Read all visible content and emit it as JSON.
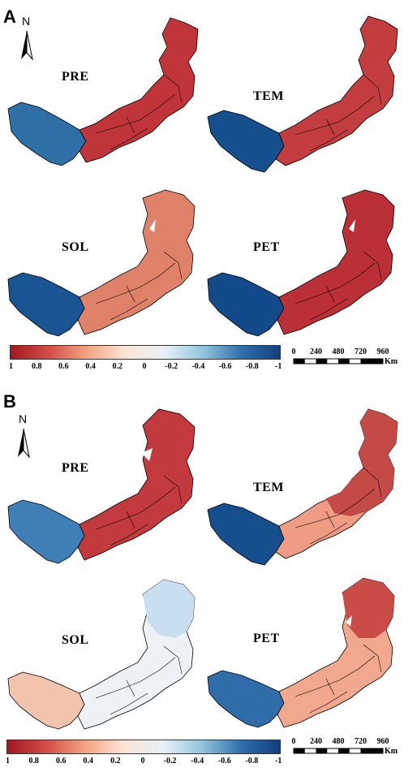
{
  "panels": [
    {
      "letter": "A",
      "maps": [
        {
          "label": "PRE",
          "west": "#2f6fa8",
          "east": "#c0353a",
          "mid": "#d24a4a"
        },
        {
          "label": "TEM",
          "west": "#154f8e",
          "east": "#c33d3e",
          "mid": "#d45a50"
        },
        {
          "label": "SOL",
          "west": "#1a5593",
          "east": "#e0826a",
          "mid": "#e8947a"
        },
        {
          "label": "PET",
          "west": "#134b8a",
          "east": "#bb2f36",
          "mid": "#c94446"
        }
      ]
    },
    {
      "letter": "B",
      "maps": [
        {
          "label": "PRE",
          "west": "#3e7fb8",
          "east": "#c23a3e",
          "mid": "#d3574f"
        },
        {
          "label": "TEM",
          "west": "#164f8d",
          "east": "#c44a45",
          "mid": "#ee9d84"
        },
        {
          "label": "SOL",
          "west": "#f3c4ad",
          "east": "#c9dff0",
          "mid": "#eef2f6"
        },
        {
          "label": "PET",
          "west": "#2e6daa",
          "east": "#c94c47",
          "mid": "#f1a88c"
        }
      ]
    }
  ],
  "north_label": "N",
  "colorbar": {
    "ticks": [
      "1",
      "0.8",
      "0.6",
      "0.4",
      "0.2",
      "0",
      "-0.2",
      "-0.4",
      "-0.6",
      "-0.8",
      "-1"
    ],
    "colors": [
      "#a5171f",
      "#d24d48",
      "#f4a582",
      "#fbe5d6",
      "#e8f1f8",
      "#92c5de",
      "#2f6fad",
      "#123f7d"
    ]
  },
  "scalebar": {
    "ticks": [
      "0",
      "240",
      "480",
      "720",
      "960"
    ],
    "unit": "Km"
  }
}
